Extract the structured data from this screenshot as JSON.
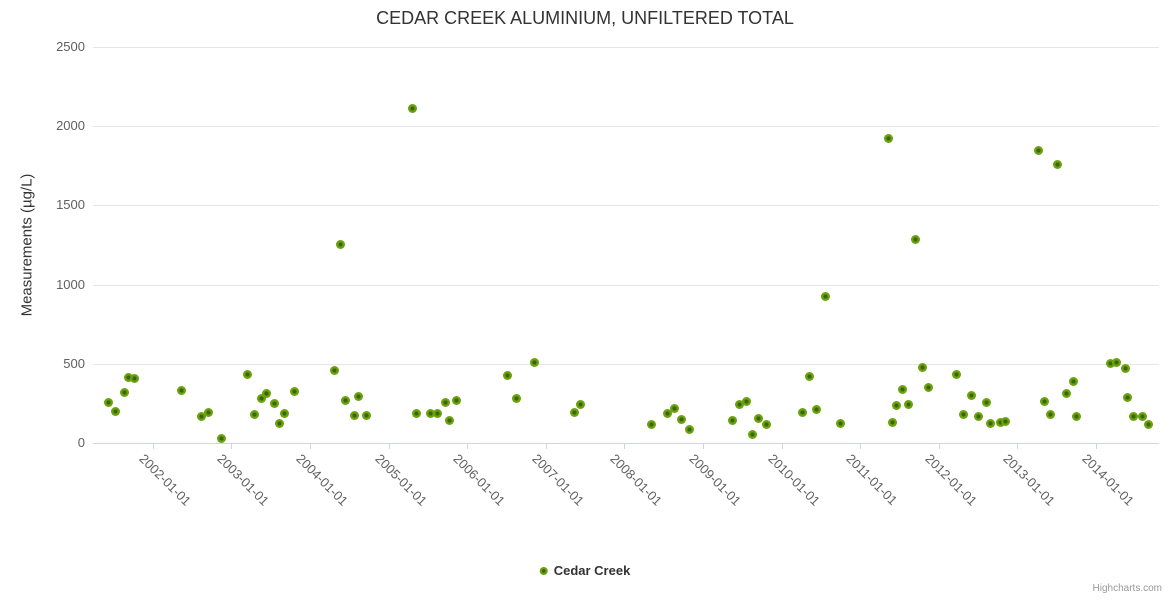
{
  "title": {
    "text": "CEDAR CREEK ALUMINIUM, UNFILTERED TOTAL"
  },
  "legend": {
    "label": "Cedar Creek",
    "marker_icon": "green-dot-icon"
  },
  "credits": {
    "text": "Highcharts.com"
  },
  "chart_data": {
    "type": "scatter",
    "title": "CEDAR CREEK ALUMINIUM, UNFILTERED TOTAL",
    "xlabel": "",
    "ylabel": "Measurements (µg/L)",
    "grid": "horizontal-only",
    "legend_position": "bottom-center",
    "x_axis": {
      "tick_labels": [
        "2002-01-01",
        "2003-01-01",
        "2004-01-01",
        "2005-01-01",
        "2006-01-01",
        "2007-01-01",
        "2008-01-01",
        "2009-01-01",
        "2010-01-01",
        "2011-01-01",
        "2012-01-01",
        "2013-01-01",
        "2014-01-01"
      ],
      "tick_years": [
        2002,
        2003,
        2004,
        2005,
        2006,
        2007,
        2008,
        2009,
        2010,
        2011,
        2012,
        2013,
        2014
      ],
      "range_years": [
        2001.24,
        2014.8
      ],
      "label_rotation_deg": 45
    },
    "y_axis": {
      "ticks": [
        0,
        500,
        1000,
        1500,
        2000,
        2500
      ],
      "range": [
        0,
        2500
      ]
    },
    "series": [
      {
        "name": "Cedar Creek",
        "color": "#6ba10b",
        "points": [
          [
            2001.44,
            254
          ],
          [
            2001.52,
            200
          ],
          [
            2001.64,
            320
          ],
          [
            2001.69,
            415
          ],
          [
            2001.77,
            410
          ],
          [
            2002.37,
            333
          ],
          [
            2002.62,
            166
          ],
          [
            2002.71,
            194
          ],
          [
            2002.87,
            30
          ],
          [
            2003.2,
            434
          ],
          [
            2003.3,
            181
          ],
          [
            2003.38,
            284
          ],
          [
            2003.45,
            311
          ],
          [
            2003.55,
            252
          ],
          [
            2003.61,
            126
          ],
          [
            2003.68,
            189
          ],
          [
            2003.8,
            328
          ],
          [
            2004.31,
            456
          ],
          [
            2004.39,
            1255
          ],
          [
            2004.45,
            267
          ],
          [
            2004.57,
            172
          ],
          [
            2004.62,
            295
          ],
          [
            2004.72,
            172
          ],
          [
            2005.31,
            2110
          ],
          [
            2005.35,
            189
          ],
          [
            2005.53,
            187
          ],
          [
            2005.62,
            187
          ],
          [
            2005.73,
            254
          ],
          [
            2005.77,
            141
          ],
          [
            2005.87,
            267
          ],
          [
            2006.51,
            429
          ],
          [
            2006.63,
            282
          ],
          [
            2006.86,
            507
          ],
          [
            2007.36,
            191
          ],
          [
            2007.44,
            244
          ],
          [
            2008.34,
            114
          ],
          [
            2008.55,
            187
          ],
          [
            2008.64,
            215
          ],
          [
            2008.72,
            150
          ],
          [
            2008.83,
            88
          ],
          [
            2009.38,
            145
          ],
          [
            2009.47,
            242
          ],
          [
            2009.55,
            261
          ],
          [
            2009.63,
            51
          ],
          [
            2009.71,
            156
          ],
          [
            2009.81,
            118
          ],
          [
            2010.27,
            191
          ],
          [
            2010.36,
            417
          ],
          [
            2010.44,
            210
          ],
          [
            2010.56,
            925
          ],
          [
            2010.75,
            120
          ],
          [
            2011.36,
            1925
          ],
          [
            2011.41,
            131
          ],
          [
            2011.46,
            234
          ],
          [
            2011.54,
            336
          ],
          [
            2011.61,
            240
          ],
          [
            2011.7,
            1283
          ],
          [
            2011.79,
            478
          ],
          [
            2011.87,
            349
          ],
          [
            2012.22,
            431
          ],
          [
            2012.31,
            177
          ],
          [
            2012.41,
            301
          ],
          [
            2012.51,
            170
          ],
          [
            2012.6,
            257
          ],
          [
            2012.66,
            122
          ],
          [
            2012.79,
            131
          ],
          [
            2012.85,
            133
          ],
          [
            2013.27,
            1845
          ],
          [
            2013.34,
            265
          ],
          [
            2013.42,
            179
          ],
          [
            2013.51,
            1757
          ],
          [
            2013.62,
            314
          ],
          [
            2013.71,
            387
          ],
          [
            2013.75,
            166
          ],
          [
            2014.18,
            505
          ],
          [
            2014.26,
            509
          ],
          [
            2014.37,
            473
          ],
          [
            2014.4,
            288
          ],
          [
            2014.48,
            166
          ],
          [
            2014.59,
            166
          ],
          [
            2014.67,
            118
          ]
        ]
      }
    ],
    "colors": {
      "point_outer": "#6ba10b",
      "point_inner": "#3a660a",
      "grid": "#e6e6e6",
      "axis": "#ccd6eb",
      "tick_label": "#606060",
      "title": "#333333",
      "credits": "#999999"
    }
  }
}
